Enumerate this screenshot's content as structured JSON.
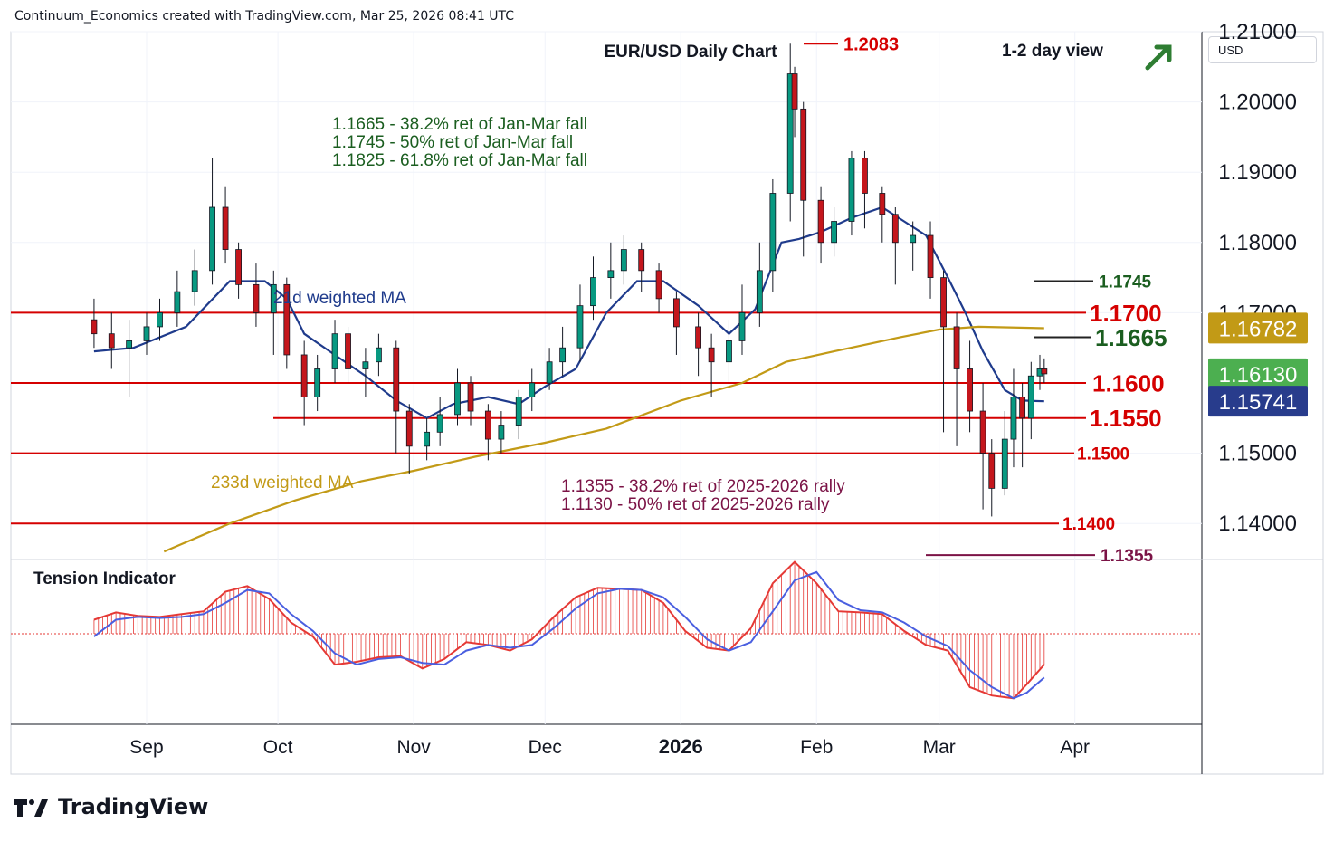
{
  "header": "Continuum_Economics created with TradingView.com, Mar 25, 2026 08:41 UTC",
  "currency_button": "USD",
  "brand": "TradingView",
  "colors": {
    "candle_up": "#089981",
    "candle_down": "#c4161c",
    "line_21d": "#1f3b8c",
    "line_233d": "#c29a16",
    "hline": "#d50000",
    "annotation_green": "#1b5e20",
    "annotation_purple": "#7b1346",
    "tension_fill": "#e53935",
    "tension_line": "#4a5fe0"
  },
  "chart_data": [
    {
      "type": "candlestick",
      "title": "EUR/USD Daily Chart",
      "view_label": "1-2 day view",
      "view_icon": "arrow-up-right-icon",
      "x_ticks": [
        "Sep",
        "Oct",
        "Nov",
        "Dec",
        "2026",
        "Feb",
        "Mar",
        "Apr"
      ],
      "y_ticks": [
        "1.21000",
        "1.20000",
        "1.19000",
        "1.18000",
        "1.17000",
        "1.15000",
        "1.14000"
      ],
      "ylim": [
        1.135,
        1.21
      ],
      "grid": true,
      "series": [
        {
          "name": "21d weighted MA",
          "type": "line",
          "x": [
            "2025-08-20",
            "2025-08-29",
            "2025-09-10",
            "2025-09-20",
            "2025-09-28",
            "2025-10-03",
            "2025-10-07",
            "2025-10-14",
            "2025-10-21",
            "2025-10-28",
            "2025-11-04",
            "2025-11-10",
            "2025-11-18",
            "2025-11-25",
            "2025-12-01",
            "2025-12-08",
            "2025-12-15",
            "2025-12-22",
            "2025-12-28",
            "2026-01-05",
            "2026-01-12",
            "2026-01-18",
            "2026-01-24",
            "2026-01-28",
            "2026-02-02",
            "2026-02-09",
            "2026-02-16",
            "2026-02-21",
            "2026-02-26",
            "2026-03-03",
            "2026-03-07",
            "2026-03-11",
            "2026-03-16",
            "2026-03-20",
            "2026-03-25"
          ],
          "y": [
            1.1645,
            1.165,
            1.168,
            1.1745,
            1.1745,
            1.172,
            1.167,
            1.164,
            1.161,
            1.1575,
            1.155,
            1.157,
            1.158,
            1.157,
            1.1595,
            1.162,
            1.17,
            1.1745,
            1.1745,
            1.171,
            1.167,
            1.1705,
            1.18,
            1.1805,
            1.1815,
            1.1835,
            1.185,
            1.183,
            1.181,
            1.175,
            1.17,
            1.1645,
            1.159,
            1.1575,
            1.1574
          ]
        },
        {
          "name": "233d weighted MA",
          "type": "line",
          "x": [
            "2025-09-05",
            "2025-09-20",
            "2025-10-05",
            "2025-10-20",
            "2025-11-01",
            "2025-11-15",
            "2025-12-01",
            "2025-12-15",
            "2026-01-01",
            "2026-01-15",
            "2026-01-25",
            "2026-02-05",
            "2026-02-20",
            "2026-03-01",
            "2026-03-10",
            "2026-03-25"
          ],
          "y": [
            1.136,
            1.14,
            1.1433,
            1.146,
            1.1475,
            1.1495,
            1.1515,
            1.1535,
            1.1575,
            1.16,
            1.163,
            1.1645,
            1.1665,
            1.1676,
            1.168,
            1.1678
          ]
        }
      ],
      "candles": {
        "x": [
          "2025-08-20",
          "2025-08-24",
          "2025-08-28",
          "2025-09-01",
          "2025-09-04",
          "2025-09-08",
          "2025-09-12",
          "2025-09-16",
          "2025-09-19",
          "2025-09-22",
          "2025-09-26",
          "2025-09-30",
          "2025-10-03",
          "2025-10-07",
          "2025-10-10",
          "2025-10-14",
          "2025-10-17",
          "2025-10-21",
          "2025-10-24",
          "2025-10-28",
          "2025-10-31",
          "2025-11-04",
          "2025-11-07",
          "2025-11-11",
          "2025-11-14",
          "2025-11-18",
          "2025-11-21",
          "2025-11-25",
          "2025-11-28",
          "2025-12-02",
          "2025-12-05",
          "2025-12-09",
          "2025-12-12",
          "2025-12-16",
          "2025-12-19",
          "2025-12-23",
          "2025-12-27",
          "2025-12-31",
          "2026-01-05",
          "2026-01-08",
          "2026-01-12",
          "2026-01-15",
          "2026-01-19",
          "2026-01-22",
          "2026-01-26",
          "2026-01-27",
          "2026-01-29",
          "2026-02-02",
          "2026-02-05",
          "2026-02-09",
          "2026-02-12",
          "2026-02-16",
          "2026-02-19",
          "2026-02-23",
          "2026-02-27",
          "2026-03-02",
          "2026-03-05",
          "2026-03-08",
          "2026-03-11",
          "2026-03-13",
          "2026-03-16",
          "2026-03-18",
          "2026-03-20",
          "2026-03-22",
          "2026-03-24",
          "2026-03-25"
        ],
        "open": [
          1.169,
          1.167,
          1.165,
          1.166,
          1.168,
          1.17,
          1.173,
          1.176,
          1.185,
          1.179,
          1.174,
          1.17,
          1.174,
          1.164,
          1.158,
          1.162,
          1.167,
          1.162,
          1.163,
          1.165,
          1.156,
          1.151,
          1.153,
          1.1555,
          1.16,
          1.156,
          1.152,
          1.154,
          1.158,
          1.16,
          1.163,
          1.165,
          1.171,
          1.175,
          1.176,
          1.179,
          1.176,
          1.172,
          1.168,
          1.165,
          1.163,
          1.166,
          1.17,
          1.176,
          1.187,
          1.204,
          1.199,
          1.186,
          1.18,
          1.183,
          1.192,
          1.187,
          1.184,
          1.18,
          1.181,
          1.175,
          1.168,
          1.162,
          1.156,
          1.15,
          1.145,
          1.152,
          1.158,
          1.155,
          1.161,
          1.162
        ],
        "close": [
          1.167,
          1.165,
          1.166,
          1.168,
          1.17,
          1.173,
          1.176,
          1.185,
          1.179,
          1.174,
          1.17,
          1.174,
          1.164,
          1.158,
          1.162,
          1.167,
          1.162,
          1.163,
          1.165,
          1.156,
          1.151,
          1.153,
          1.1555,
          1.16,
          1.156,
          1.152,
          1.154,
          1.158,
          1.16,
          1.163,
          1.165,
          1.171,
          1.175,
          1.176,
          1.179,
          1.176,
          1.172,
          1.168,
          1.165,
          1.163,
          1.166,
          1.17,
          1.176,
          1.187,
          1.204,
          1.199,
          1.186,
          1.18,
          1.183,
          1.192,
          1.187,
          1.184,
          1.18,
          1.181,
          1.175,
          1.168,
          1.162,
          1.156,
          1.15,
          1.145,
          1.152,
          1.158,
          1.155,
          1.161,
          1.162,
          1.1613
        ],
        "high": [
          1.172,
          1.17,
          1.169,
          1.17,
          1.172,
          1.176,
          1.179,
          1.192,
          1.188,
          1.18,
          1.177,
          1.176,
          1.175,
          1.166,
          1.164,
          1.169,
          1.168,
          1.165,
          1.167,
          1.166,
          1.157,
          1.155,
          1.158,
          1.162,
          1.161,
          1.157,
          1.156,
          1.159,
          1.162,
          1.165,
          1.168,
          1.174,
          1.178,
          1.18,
          1.181,
          1.18,
          1.177,
          1.173,
          1.17,
          1.167,
          1.169,
          1.174,
          1.18,
          1.189,
          1.2083,
          1.205,
          1.2,
          1.188,
          1.185,
          1.193,
          1.193,
          1.188,
          1.185,
          1.183,
          1.183,
          1.176,
          1.17,
          1.166,
          1.16,
          1.152,
          1.156,
          1.162,
          1.16,
          1.163,
          1.164,
          1.1635
        ],
        "low": [
          1.165,
          1.162,
          1.158,
          1.164,
          1.166,
          1.168,
          1.171,
          1.174,
          1.177,
          1.172,
          1.168,
          1.164,
          1.162,
          1.154,
          1.156,
          1.16,
          1.16,
          1.158,
          1.161,
          1.15,
          1.147,
          1.149,
          1.151,
          1.154,
          1.154,
          1.149,
          1.15,
          1.152,
          1.156,
          1.159,
          1.161,
          1.163,
          1.169,
          1.172,
          1.174,
          1.173,
          1.17,
          1.164,
          1.161,
          1.158,
          1.16,
          1.164,
          1.168,
          1.173,
          1.183,
          1.195,
          1.178,
          1.177,
          1.178,
          1.181,
          1.182,
          1.18,
          1.174,
          1.176,
          1.172,
          1.153,
          1.151,
          1.153,
          1.142,
          1.141,
          1.144,
          1.148,
          1.148,
          1.152,
          1.159,
          1.16
        ]
      },
      "horizontal_levels": [
        {
          "label": "1.2083",
          "value": 1.2083
        },
        {
          "label": "1.1745",
          "value": 1.1745
        },
        {
          "label": "1.1700",
          "value": 1.17
        },
        {
          "label": "1.1665",
          "value": 1.1665
        },
        {
          "label": "1.1600",
          "value": 1.16
        },
        {
          "label": "1.1550",
          "value": 1.155
        },
        {
          "label": "1.1500",
          "value": 1.15
        },
        {
          "label": "1.1400",
          "value": 1.14
        },
        {
          "label": "1.1355",
          "value": 1.1355
        }
      ],
      "price_tags": [
        {
          "label": "1.16782",
          "value": 1.16782,
          "color": "#c29a16"
        },
        {
          "label": "1.16130",
          "value": 1.1613,
          "color": "#4caf50"
        },
        {
          "label": "1.15741",
          "value": 1.15741,
          "color": "#283c8c"
        }
      ],
      "annotations": {
        "green": [
          "1.1665 - 38.2% ret of Jan-Mar fall",
          "1.1745 - 50% ret of Jan-Mar fall",
          "1.1825 - 61.8% ret of Jan-Mar fall"
        ],
        "purple": [
          "1.1355 - 38.2% ret of 2025-2026 rally",
          "1.1130 - 50% ret of 2025-2026 rally"
        ],
        "ma21_label": "21d weighted MA",
        "ma233_label": "233d weighted MA"
      }
    },
    {
      "type": "area",
      "title": "Tension Indicator",
      "series": [
        {
          "name": "tension",
          "x": [
            "2025-08-20",
            "2025-08-25",
            "2025-08-30",
            "2025-09-04",
            "2025-09-09",
            "2025-09-14",
            "2025-09-19",
            "2025-09-24",
            "2025-09-29",
            "2025-10-04",
            "2025-10-09",
            "2025-10-14",
            "2025-10-19",
            "2025-10-24",
            "2025-10-29",
            "2025-11-03",
            "2025-11-08",
            "2025-11-13",
            "2025-11-18",
            "2025-11-23",
            "2025-11-28",
            "2025-12-03",
            "2025-12-08",
            "2025-12-13",
            "2025-12-18",
            "2025-12-23",
            "2025-12-28",
            "2026-01-02",
            "2026-01-07",
            "2026-01-12",
            "2026-01-17",
            "2026-01-22",
            "2026-01-27",
            "2026-02-01",
            "2026-02-06",
            "2026-02-11",
            "2026-02-16",
            "2026-02-21",
            "2026-02-26",
            "2026-03-03",
            "2026-03-08",
            "2026-03-13",
            "2026-03-18",
            "2026-03-21",
            "2026-03-25"
          ],
          "y": [
            0.25,
            0.38,
            0.32,
            0.3,
            0.35,
            0.4,
            0.75,
            0.85,
            0.62,
            0.2,
            -0.05,
            -0.55,
            -0.5,
            -0.42,
            -0.4,
            -0.62,
            -0.45,
            -0.15,
            -0.2,
            -0.3,
            -0.1,
            0.3,
            0.65,
            0.82,
            0.8,
            0.78,
            0.55,
            0.05,
            -0.25,
            -0.3,
            0.1,
            0.9,
            1.28,
            0.9,
            0.4,
            0.38,
            0.35,
            0.05,
            -0.2,
            -0.3,
            -0.95,
            -1.1,
            -1.15,
            -0.9,
            -0.55
          ]
        },
        {
          "name": "signal",
          "x": [
            "2025-08-20",
            "2025-08-25",
            "2025-08-30",
            "2025-09-04",
            "2025-09-09",
            "2025-09-14",
            "2025-09-19",
            "2025-09-24",
            "2025-09-29",
            "2025-10-04",
            "2025-10-09",
            "2025-10-14",
            "2025-10-19",
            "2025-10-24",
            "2025-10-29",
            "2025-11-03",
            "2025-11-08",
            "2025-11-13",
            "2025-11-18",
            "2025-11-23",
            "2025-11-28",
            "2025-12-03",
            "2025-12-08",
            "2025-12-13",
            "2025-12-18",
            "2025-12-23",
            "2025-12-28",
            "2026-01-02",
            "2026-01-07",
            "2026-01-12",
            "2026-01-17",
            "2026-01-22",
            "2026-01-27",
            "2026-02-01",
            "2026-02-06",
            "2026-02-11",
            "2026-02-16",
            "2026-02-21",
            "2026-02-26",
            "2026-03-03",
            "2026-03-08",
            "2026-03-13",
            "2026-03-18",
            "2026-03-21",
            "2026-03-25"
          ],
          "y": [
            -0.05,
            0.25,
            0.3,
            0.28,
            0.3,
            0.35,
            0.55,
            0.78,
            0.72,
            0.35,
            0.05,
            -0.35,
            -0.55,
            -0.45,
            -0.42,
            -0.52,
            -0.55,
            -0.3,
            -0.2,
            -0.25,
            -0.2,
            0.1,
            0.45,
            0.72,
            0.8,
            0.78,
            0.65,
            0.3,
            -0.1,
            -0.3,
            -0.15,
            0.4,
            0.95,
            1.1,
            0.6,
            0.42,
            0.38,
            0.2,
            -0.05,
            -0.22,
            -0.65,
            -0.95,
            -1.15,
            -1.05,
            -0.78
          ]
        }
      ]
    }
  ]
}
